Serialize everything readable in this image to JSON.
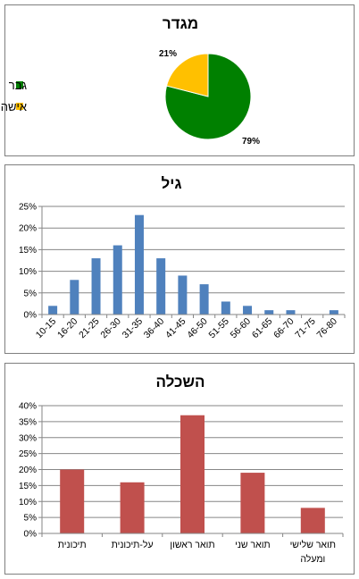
{
  "colors": {
    "male": "#008000",
    "female": "#ffc000",
    "age_bar": "#4f81bd",
    "edu_bar": "#c0504d",
    "grid": "#868686",
    "border": "#7f7f7f"
  },
  "chart_data": [
    {
      "type": "pie",
      "title": "מגדר",
      "categories": [
        "גבר",
        "אישה"
      ],
      "values": [
        79,
        21
      ],
      "labels": [
        "79%",
        "21%"
      ],
      "legend": "left"
    },
    {
      "type": "bar",
      "title": "גיל",
      "categories": [
        "10-15",
        "16-20",
        "21-25",
        "26-30",
        "31-35",
        "36-40",
        "41-45",
        "46-50",
        "51-55",
        "56-60",
        "61-65",
        "66-70",
        "71-75",
        "76-80"
      ],
      "values": [
        2,
        8,
        13,
        16,
        23,
        13,
        9,
        7,
        3,
        2,
        1,
        1,
        0,
        1
      ],
      "ylim": [
        0,
        25
      ],
      "yticks": [
        "0%",
        "5%",
        "10%",
        "15%",
        "20%",
        "25%"
      ],
      "grid": true
    },
    {
      "type": "bar",
      "title": "השכלה",
      "categories": [
        "תיכונית",
        "על-תיכונית",
        "תואר ראשון",
        "תואר שני",
        "תואר שלישי ומעלה"
      ],
      "category_lines": [
        [
          "תיכונית"
        ],
        [
          "על-תיכונית"
        ],
        [
          "תואר ראשון"
        ],
        [
          "תואר שני"
        ],
        [
          "תואר שלישי",
          "ומעלה"
        ]
      ],
      "values": [
        20,
        16,
        37,
        19,
        8
      ],
      "ylim": [
        0,
        40
      ],
      "yticks": [
        "0%",
        "5%",
        "10%",
        "15%",
        "20%",
        "25%",
        "30%",
        "35%",
        "40%"
      ],
      "grid": true
    }
  ]
}
